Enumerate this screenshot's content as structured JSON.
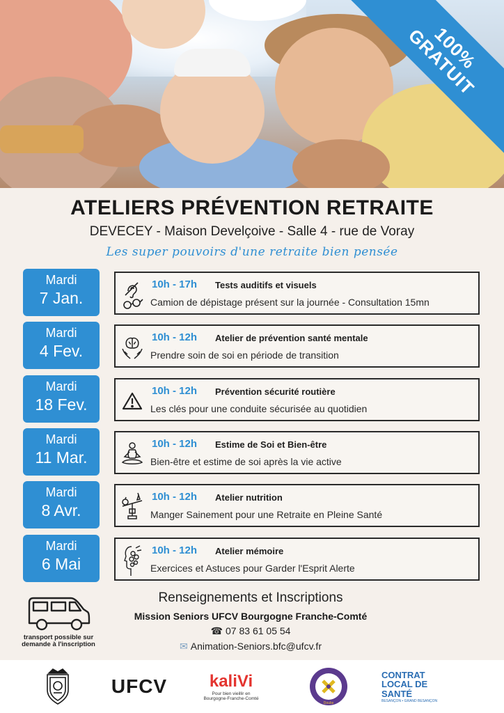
{
  "ribbon": {
    "line1": "100%",
    "line2": "GRATUIT"
  },
  "header": {
    "title": "ATELIERS PRÉVENTION RETRAITE",
    "subtitle": "DEVECEY - Maison Develçoive - Salle 4 - rue de Voray",
    "tagline": "Les super pouvoirs d'une retraite bien pensée"
  },
  "sessions": [
    {
      "day": "Mardi",
      "date": "7 Jan.",
      "time": "10h - 17h",
      "topic": "Tests auditifs et visuels",
      "desc": "Camion de dépistage présent sur la journée - Consultation 15mn",
      "icon": "hearing-glasses-icon"
    },
    {
      "day": "Mardi",
      "date": "4 Fev.",
      "time": "10h - 12h",
      "topic": "Atelier de prévention santé mentale",
      "desc": "Prendre soin de soi en période de transition",
      "icon": "brain-hands-icon"
    },
    {
      "day": "Mardi",
      "date": "18 Fev.",
      "time": "10h - 12h",
      "topic": "Prévention sécurité routière",
      "desc": "Les clés pour une conduite sécurisée au quotidien",
      "icon": "warning-triangle-icon"
    },
    {
      "day": "Mardi",
      "date": "11 Mar.",
      "time": "10h - 12h",
      "topic": "Estime de Soi et Bien-être",
      "desc": "Bien-être et estime de soi après la vie active",
      "icon": "meditation-icon"
    },
    {
      "day": "Mardi",
      "date": "8 Avr.",
      "time": "10h - 12h",
      "topic": "Atelier nutrition",
      "desc": "Manger Sainement pour une Retraite en Pleine Santé",
      "icon": "balance-food-icon"
    },
    {
      "day": "Mardi",
      "date": "6 Mai",
      "time": "10h - 12h",
      "topic": "Atelier mémoire",
      "desc": "Exercices et Astuces pour Garder l'Esprit Alerte",
      "icon": "head-flowers-icon"
    }
  ],
  "contact": {
    "title": "Renseignements et Inscriptions",
    "org": "Mission Seniors UFCV Bourgogne Franche-Comté",
    "phone": "07 83 61 05 54",
    "email": "Animation-Seniors.bfc@ufcv.fr",
    "transport": "transport possible sur demande à l'inscription"
  },
  "logos": {
    "ufcv": "UFCV",
    "kalivi": "kaliVi",
    "kalivi_sub": "Pour bien vieillir en Bourgogne-Franche-Comté",
    "cls_line1": "CONTRAT",
    "cls_line2": "LOCAL DE SANTÉ",
    "cls_sub": "BESANÇON • GRAND BESANÇON",
    "doubs": "Doubs"
  },
  "colors": {
    "accent": "#2f8fd3",
    "background": "#f5f0eb",
    "text": "#1f1f1f"
  }
}
